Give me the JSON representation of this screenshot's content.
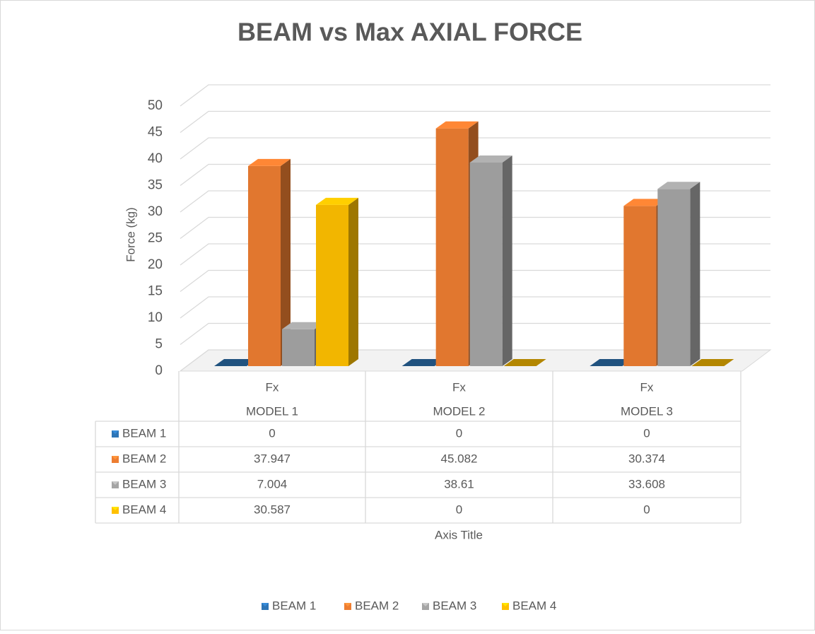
{
  "chart_data": {
    "type": "bar3d",
    "title": "BEAM vs Max AXIAL FORCE",
    "y_label": "Force (kg)",
    "x_label": "Axis Title",
    "subcategories": [
      "Fx",
      "Fx",
      "Fx"
    ],
    "categories": [
      "MODEL 1",
      "MODEL 2",
      "MODEL 3"
    ],
    "series": [
      {
        "name": "BEAM 1",
        "color": "#2e75b6",
        "values": [
          0,
          0,
          0
        ]
      },
      {
        "name": "BEAM 2",
        "color": "#ed7d31",
        "values": [
          37.947,
          45.082,
          30.374
        ]
      },
      {
        "name": "BEAM 3",
        "color": "#a5a5a5",
        "values": [
          7.004,
          38.61,
          33.608
        ]
      },
      {
        "name": "BEAM 4",
        "color": "#ffc000",
        "values": [
          30.587,
          0,
          0
        ]
      }
    ],
    "ylim": [
      0,
      50
    ],
    "yticks": [
      0,
      5,
      10,
      15,
      20,
      25,
      30,
      35,
      40,
      45,
      50
    ],
    "grid": true,
    "legend": "bottom",
    "data_table": true
  }
}
